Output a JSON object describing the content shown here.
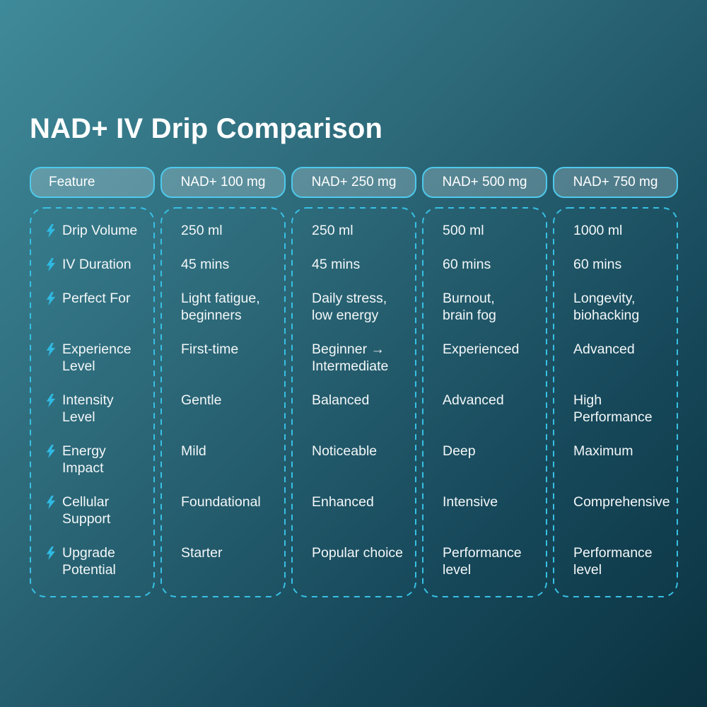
{
  "title": "NAD+ IV Drip Comparison",
  "chart_data": {
    "type": "table",
    "title": "NAD+ IV Drip Comparison",
    "columns": [
      "Feature",
      "NAD+ 100 mg",
      "NAD+ 250 mg",
      "NAD+ 500 mg",
      "NAD+ 750 mg"
    ],
    "rows": [
      {
        "feature": "Drip Volume",
        "values": [
          "250 ml",
          "250 ml",
          "500 ml",
          "1000 ml"
        ]
      },
      {
        "feature": "IV Duration",
        "values": [
          "45 mins",
          "45 mins",
          "60 mins",
          "60 mins"
        ]
      },
      {
        "feature": "Perfect For",
        "values": [
          "Light fatigue,\nbeginners",
          "Daily stress,\nlow energy",
          "Burnout,\nbrain fog",
          "Longevity,\nbiohacking"
        ]
      },
      {
        "feature": "Experience\nLevel",
        "values": [
          "First-time",
          "Beginner →\nIntermediate",
          "Experienced",
          "Advanced"
        ]
      },
      {
        "feature": "Intensity\nLevel",
        "values": [
          "Gentle",
          "Balanced",
          "Advanced",
          "High\nPerformance"
        ]
      },
      {
        "feature": "Energy\nImpact",
        "values": [
          "Mild",
          "Noticeable",
          "Deep",
          "Maximum"
        ]
      },
      {
        "feature": "Cellular\nSupport",
        "values": [
          "Foundational",
          "Enhanced",
          "Intensive",
          "Comprehensive"
        ]
      },
      {
        "feature": "Upgrade\nPotential",
        "values": [
          "Starter",
          "Popular choice",
          "Performance\nlevel",
          "Performance\nlevel"
        ]
      }
    ]
  },
  "icons": {
    "feature_bullet": "lightning-bolt-icon"
  },
  "colors": {
    "background_top_left": "#3f8a9a",
    "background_bottom_right": "#0b3240",
    "chip_border": "#4fc9ec",
    "chip_fill": "rgba(235,248,252,0.24)",
    "dashed_border": "#38c0e4",
    "bolt_accent": "#2fb9e2",
    "text": "#f3f7f8",
    "title_text": "#ffffff"
  }
}
